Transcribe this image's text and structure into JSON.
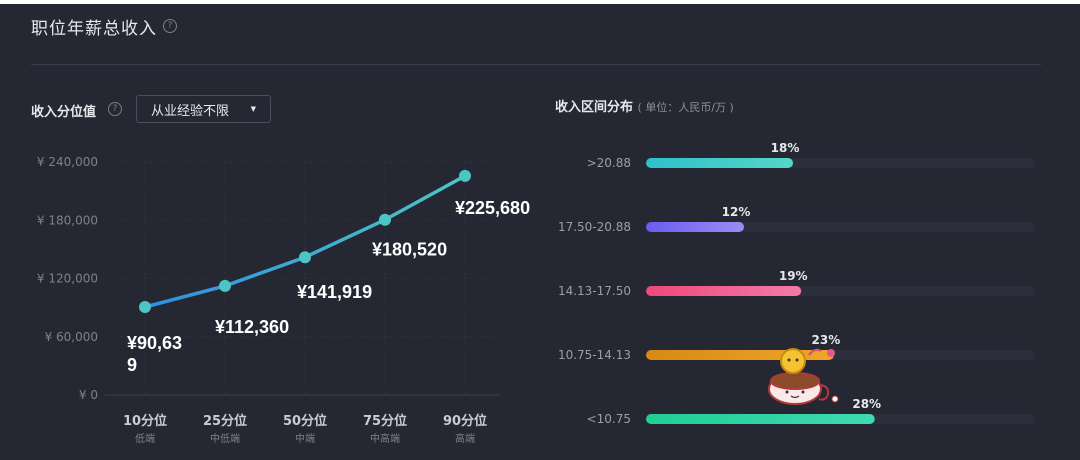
{
  "header": {
    "title": "职位年薪总收入",
    "help": "?"
  },
  "left": {
    "label": "收入分位值",
    "help": "?",
    "dropdown_value": "从业经验不限"
  },
  "right": {
    "label": "收入区间分布",
    "unit": "( 单位：人民币/万 )"
  },
  "colors": {
    "background": "#252833",
    "line_start": "#2f8fe0",
    "line_end": "#4cc6c4",
    "point": "#4cc6c4"
  },
  "chart_data": [
    {
      "type": "line",
      "categories": [
        "10分位",
        "25分位",
        "50分位",
        "75分位",
        "90分位"
      ],
      "sublabels": [
        "低端",
        "中低端",
        "中端",
        "中高端",
        "高端"
      ],
      "values": [
        90639,
        112360,
        141919,
        180520,
        225680
      ],
      "data_labels": [
        "¥90,639",
        "¥112,360",
        "¥141,919",
        "¥180,520",
        "¥225,680"
      ],
      "y_ticks": [
        "¥ 0",
        "¥ 60,000",
        "¥ 120,000",
        "¥ 180,000",
        "¥ 240,000"
      ],
      "ylim": [
        0,
        240000
      ],
      "grid": true
    },
    {
      "type": "bar",
      "orientation": "horizontal",
      "categories": [
        ">20.88",
        "17.50-20.88",
        "14.13-17.50",
        "10.75-14.13",
        "<10.75"
      ],
      "values": [
        18,
        12,
        19,
        23,
        28
      ],
      "value_labels": [
        "18%",
        "12%",
        "19%",
        "23%",
        "28%"
      ],
      "colors": [
        [
          "#2ec0c9",
          "#56d6c8"
        ],
        [
          "#6a5cf0",
          "#9b8cf5"
        ],
        [
          "#f0487a",
          "#f27aa8"
        ],
        [
          "#d68a10",
          "#f0a62a"
        ],
        [
          "#1fcf93",
          "#3fd9b2"
        ]
      ],
      "xlim": [
        0,
        100
      ]
    }
  ]
}
